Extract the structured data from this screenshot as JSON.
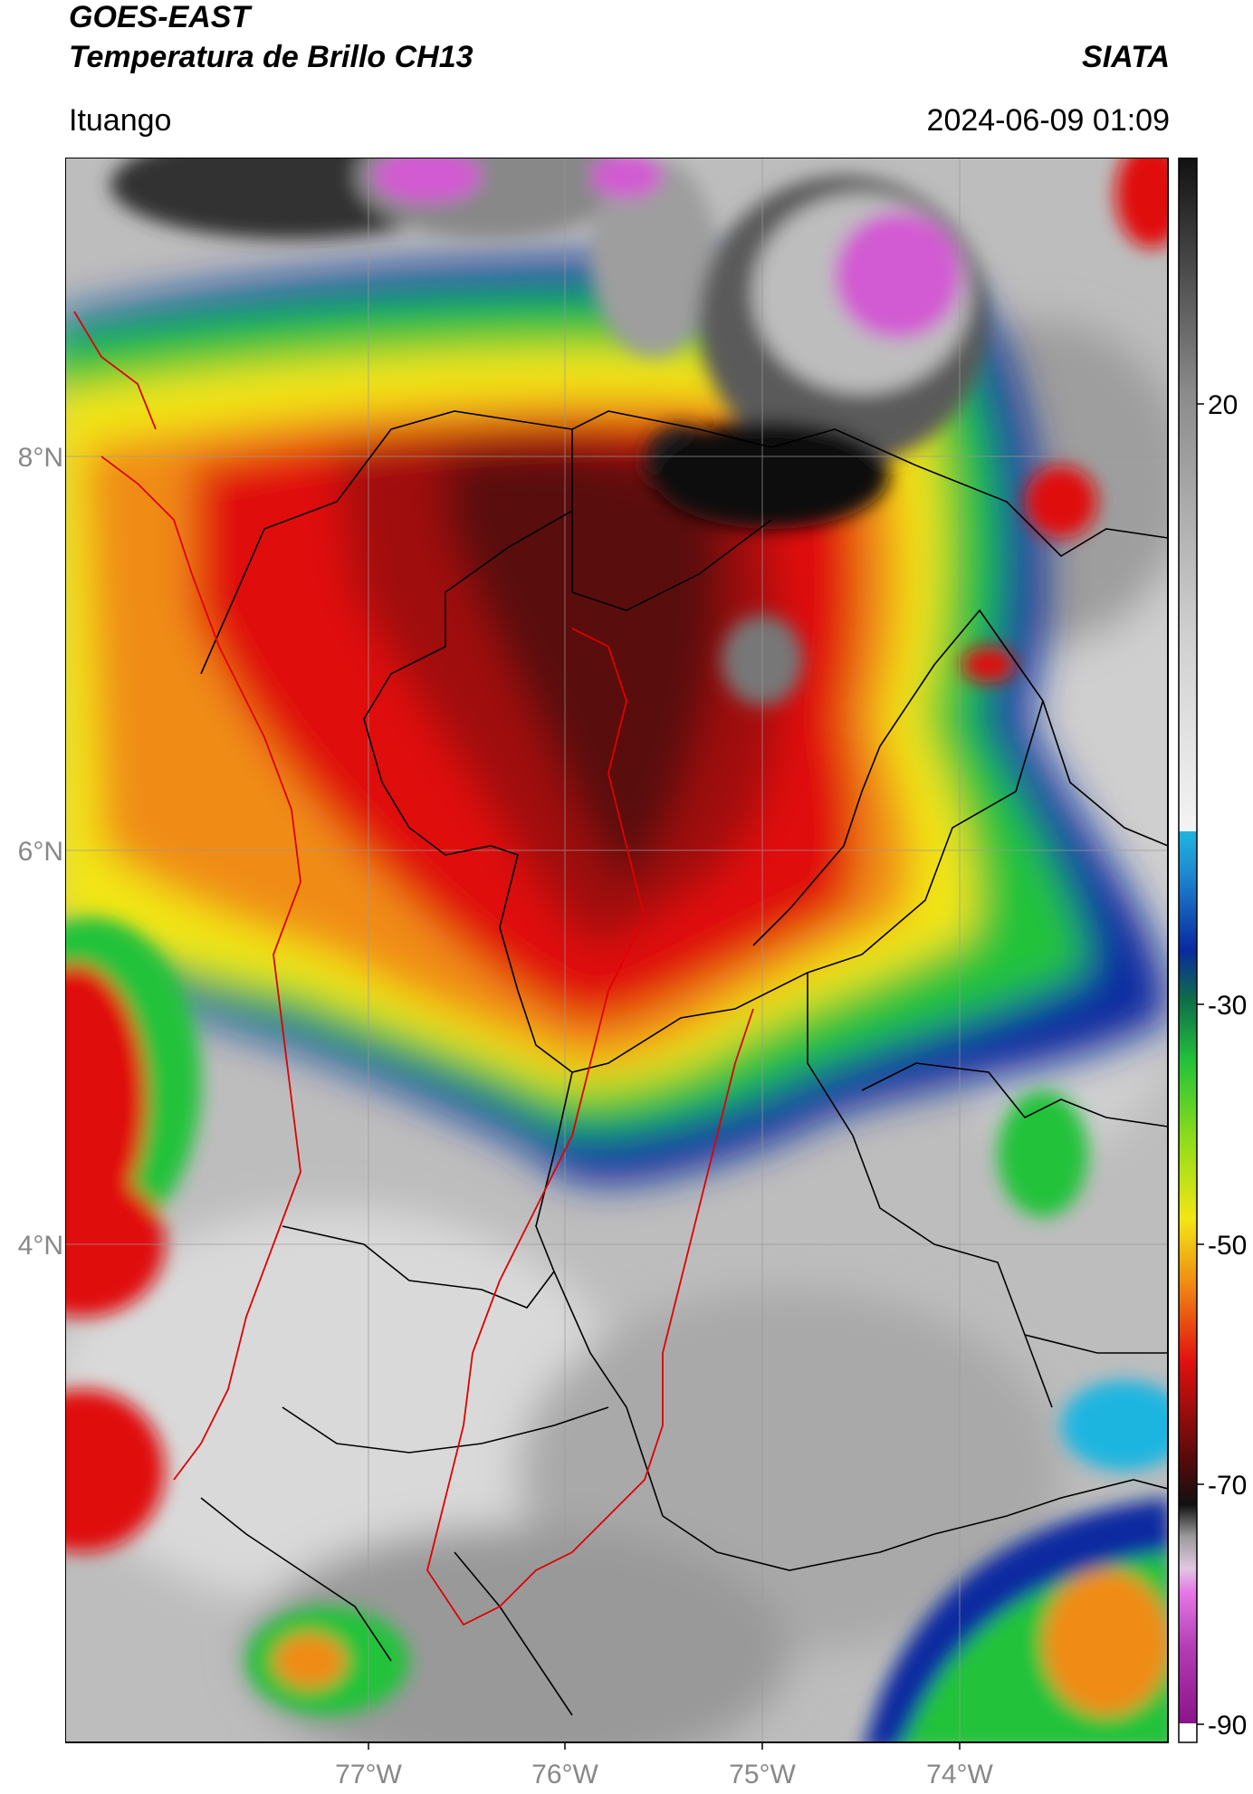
{
  "header": {
    "satellite": "GOES-EAST",
    "product": "Temperatura de Brillo CH13",
    "organization": "SIATA",
    "location": "Ituango",
    "timestamp": "2024-06-09 01:09"
  },
  "map": {
    "lon_ticks": [
      "77°W",
      "76°W",
      "75°W",
      "74°W"
    ],
    "lat_ticks": [
      "8°N",
      "6°N",
      "4°N"
    ]
  },
  "colorbar": {
    "ticks": [
      "20",
      "-30",
      "-50",
      "-70",
      "-90"
    ],
    "colors": {
      "warm": "#e6e6e6",
      "cyan": "#1fb5e0",
      "blue": "#0a2aa0",
      "green": "#22c23a",
      "yellow": "#f2e614",
      "orange": "#f08c12",
      "red": "#e01010",
      "darkred": "#5a0a0a",
      "black": "#111111",
      "magenta": "#d25ad2",
      "purple": "#8a148a"
    }
  }
}
